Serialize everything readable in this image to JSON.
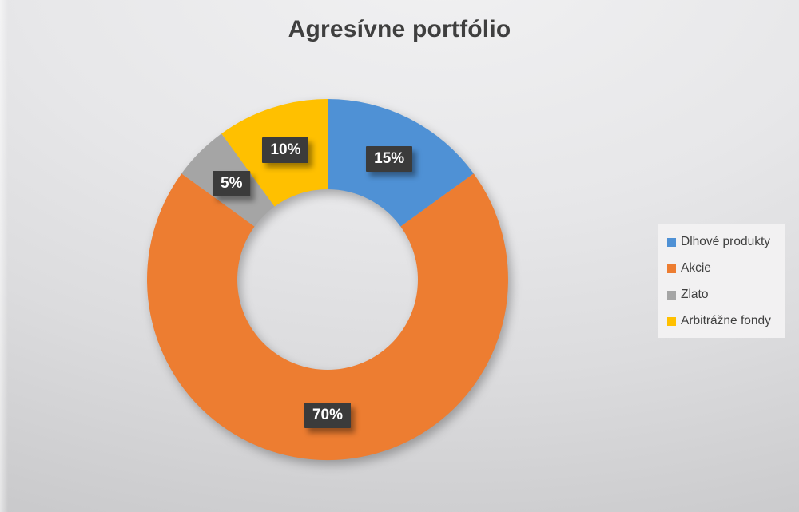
{
  "page": {
    "background_top_color": "#F1F1F2",
    "background_bottom_color": "#C4C4C6"
  },
  "chart_data": {
    "type": "pie",
    "subtype": "doughnut",
    "title": "Agresívne portfólio",
    "categories": [
      "Dlhové produkty",
      "Akcie",
      "Zlato",
      "Arbitrážne fondy"
    ],
    "values": [
      15,
      70,
      5,
      10
    ],
    "labels": [
      "15%",
      "70%",
      "5%",
      "10%"
    ],
    "colors": [
      "#4F91D5",
      "#ED7D31",
      "#A5A5A5",
      "#FFC000"
    ],
    "start_angle_deg": 0,
    "direction": "clockwise",
    "donut_hole_ratio": 0.5,
    "legend_position": "right",
    "title_color": "#3F3F3F",
    "legend_text_color": "#404040",
    "legend_background": "#F2F1F2",
    "data_label_background": "#3B3B3B",
    "data_label_text_color": "#FFFFFF"
  }
}
